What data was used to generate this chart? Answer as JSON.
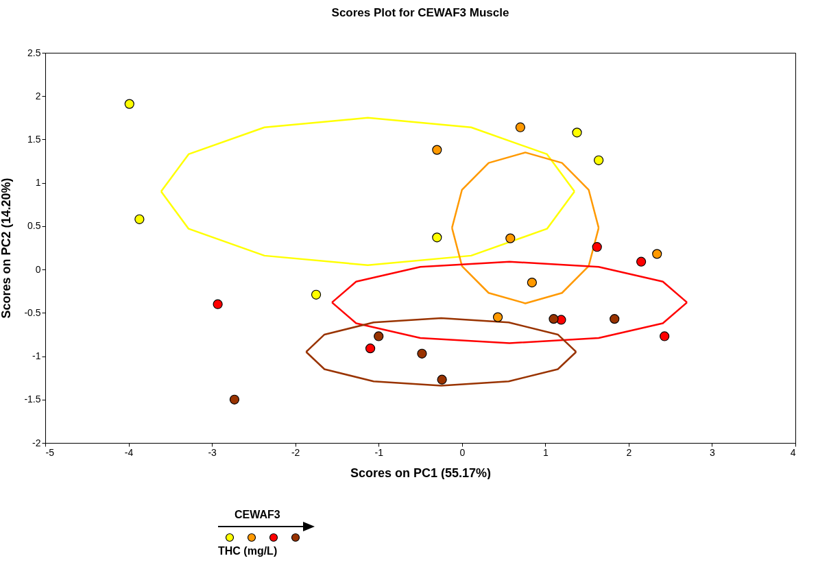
{
  "chart_data": {
    "type": "scatter",
    "title": "Scores Plot for CEWAF3 Muscle",
    "xlabel": "Scores on PC1 (55.17%)",
    "ylabel": "Scores on PC2 (14.20%)",
    "xlim": [
      -5,
      4
    ],
    "xticks": [
      -5,
      -4,
      -3,
      -2,
      -1,
      0,
      1,
      2,
      3,
      4
    ],
    "ylim": [
      -2,
      2.5
    ],
    "yticks": [
      -2,
      -1.5,
      -1,
      -0.5,
      0,
      0.5,
      1,
      1.5,
      2,
      2.5
    ],
    "grid": false,
    "marker": "circle",
    "annotations": [
      "CEWAF3",
      "THC (mg/L)"
    ],
    "series": [
      {
        "type": "line",
        "marker": "none",
        "color": "#ffff00",
        "x": [
          -3.61,
          -3.28,
          -2.37,
          -1.13,
          0.11,
          1.02,
          1.35
        ],
        "values": [
          0.9,
          1.33,
          1.64,
          1.75,
          1.64,
          1.33,
          0.9
        ]
      },
      {
        "type": "line",
        "marker": "none",
        "color": "#ffff00",
        "x": [
          -3.61,
          -3.28,
          -2.37,
          -1.13,
          0.11,
          1.02,
          1.35
        ],
        "values": [
          0.9,
          0.47,
          0.16,
          0.05,
          0.16,
          0.47,
          0.9
        ]
      },
      {
        "type": "line",
        "marker": "none",
        "color": "#ff9900",
        "x": [
          -0.12,
          0.0,
          0.32,
          0.76,
          1.2,
          1.52,
          1.64
        ],
        "values": [
          0.48,
          0.92,
          1.23,
          1.35,
          1.23,
          0.92,
          0.48
        ]
      },
      {
        "type": "line",
        "marker": "none",
        "color": "#ff9900",
        "x": [
          -0.12,
          0.0,
          0.32,
          0.76,
          1.2,
          1.52,
          1.64
        ],
        "values": [
          0.48,
          0.04,
          -0.27,
          -0.39,
          -0.27,
          0.04,
          0.48
        ]
      },
      {
        "type": "line",
        "marker": "none",
        "color": "#ff0000",
        "x": [
          -1.56,
          -1.27,
          -0.5,
          0.57,
          1.64,
          2.41,
          2.7
        ],
        "values": [
          -0.38,
          -0.14,
          0.03,
          0.09,
          0.03,
          -0.14,
          -0.38
        ]
      },
      {
        "type": "line",
        "marker": "none",
        "color": "#ff0000",
        "x": [
          -1.56,
          -1.27,
          -0.5,
          0.57,
          1.64,
          2.41,
          2.7
        ],
        "values": [
          -0.38,
          -0.62,
          -0.79,
          -0.85,
          -0.79,
          -0.62,
          -0.38
        ]
      },
      {
        "type": "line",
        "marker": "none",
        "color": "#993300",
        "x": [
          -1.87,
          -1.65,
          -1.06,
          -0.25,
          0.56,
          1.15,
          1.37
        ],
        "values": [
          -0.95,
          -0.75,
          -0.61,
          -0.56,
          -0.61,
          -0.75,
          -0.95
        ]
      },
      {
        "type": "line",
        "marker": "none",
        "color": "#993300",
        "x": [
          -1.87,
          -1.65,
          -1.06,
          -0.25,
          0.56,
          1.15,
          1.37
        ],
        "values": [
          -0.95,
          -1.15,
          -1.29,
          -1.34,
          -1.29,
          -1.15,
          -0.95
        ]
      },
      {
        "color": "#ffff00",
        "x": [
          -3.99,
          -3.87,
          -1.75,
          -0.3,
          1.38,
          1.64
        ],
        "values": [
          1.91,
          0.58,
          -0.29,
          0.37,
          1.58,
          1.26
        ]
      },
      {
        "color": "#ff9900",
        "x": [
          -0.3,
          0.7,
          0.58,
          0.84,
          0.43,
          2.34
        ],
        "values": [
          1.38,
          1.64,
          0.36,
          -0.15,
          -0.55,
          0.18
        ]
      },
      {
        "color": "#ff0000",
        "x": [
          -2.93,
          -1.1,
          1.19,
          1.62,
          2.15,
          2.43
        ],
        "values": [
          -0.4,
          -0.91,
          -0.58,
          0.26,
          0.09,
          -0.77
        ]
      },
      {
        "color": "#993300",
        "x": [
          -2.73,
          -1.0,
          -0.48,
          -0.24,
          1.1,
          1.83
        ],
        "values": [
          -1.5,
          -0.77,
          -0.97,
          -1.27,
          -0.57,
          -0.57
        ]
      }
    ]
  }
}
